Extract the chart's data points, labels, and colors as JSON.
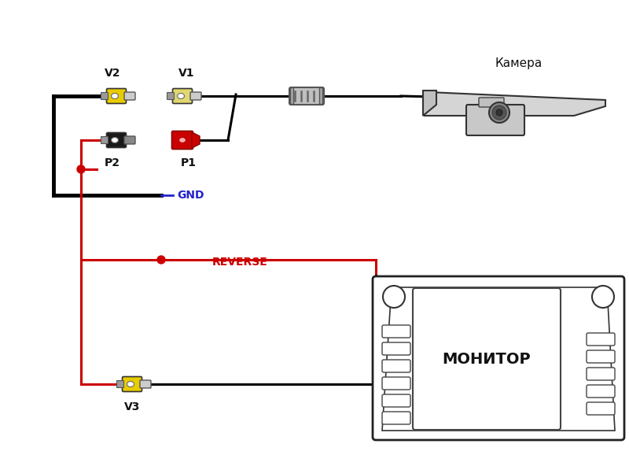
{
  "bg_color": "#ffffff",
  "lc_black": "#000000",
  "lc_red": "#cc0000",
  "lc_blue": "#2222cc",
  "lc_darkgray": "#444444",
  "lc_gray": "#888888",
  "col_yellow": "#e8cc00",
  "col_black": "#1a1a1a",
  "col_red": "#cc0000",
  "col_gray_light": "#cccccc",
  "col_gray_mid": "#aaaaaa",
  "col_gray_ferrite": "#b0b0b0",
  "labels": {
    "V1": "V1",
    "V2": "V2",
    "P1": "P1",
    "P2": "P2",
    "V3": "V3",
    "GND": "GND",
    "REVERSE": "REVERSE",
    "camera": "Камера",
    "monitor": "МОНИТОР"
  },
  "lw": 2.2,
  "lw_thick": 3.5
}
